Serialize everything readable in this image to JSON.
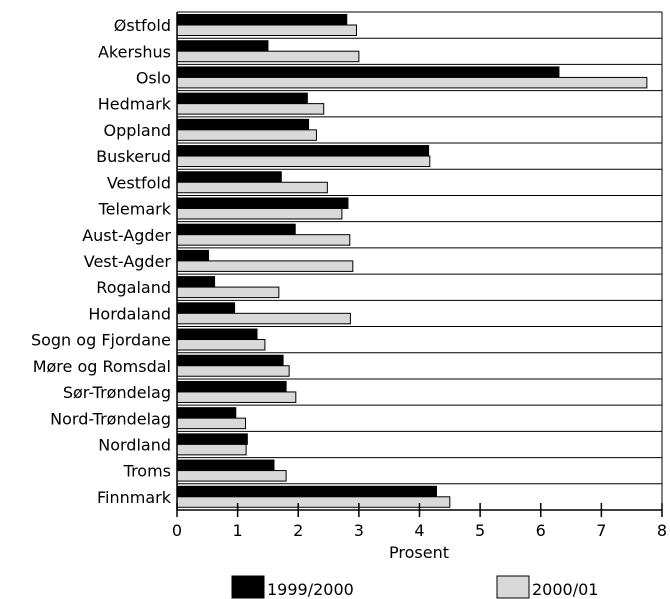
{
  "chart_data": {
    "type": "bar",
    "orientation": "horizontal",
    "categories": [
      "Østfold",
      "Akershus",
      "Oslo",
      "Hedmark",
      "Oppland",
      "Buskerud",
      "Vestfold",
      "Telemark",
      "Aust-Agder",
      "Vest-Agder",
      "Rogaland",
      "Hordaland",
      "Sogn og Fjordane",
      "Møre og Romsdal",
      "Sør-Trøndelag",
      "Nord-Trøndelag",
      "Nordland",
      "Troms",
      "Finnmark"
    ],
    "series": [
      {
        "name": "1999/2000",
        "color": "#000000",
        "values": [
          2.8,
          1.5,
          6.3,
          2.15,
          2.17,
          4.15,
          1.72,
          2.82,
          1.95,
          0.52,
          0.62,
          0.95,
          1.32,
          1.75,
          1.8,
          0.97,
          1.16,
          1.6,
          4.28
        ]
      },
      {
        "name": "2000/01",
        "color": "#d9d9d9",
        "values": [
          2.96,
          3.0,
          7.75,
          2.42,
          2.3,
          4.17,
          2.48,
          2.72,
          2.85,
          2.9,
          1.68,
          2.86,
          1.45,
          1.85,
          1.96,
          1.13,
          1.14,
          1.8,
          4.5
        ]
      }
    ],
    "xlim": [
      0,
      8
    ],
    "xticks": [
      "0",
      "1",
      "2",
      "3",
      "4",
      "5",
      "6",
      "7",
      "8"
    ],
    "xlabel": "Prosent",
    "ylabel": "",
    "title": "",
    "legend_position": "bottom"
  }
}
